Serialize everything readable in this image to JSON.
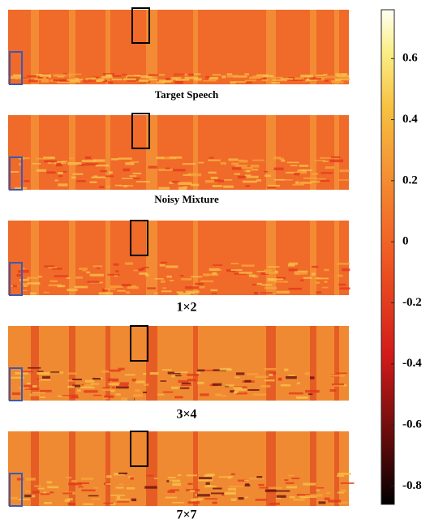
{
  "panels": [
    {
      "caption": "Target Speech"
    },
    {
      "caption": "Noisy Mixture"
    },
    {
      "caption": "1×2"
    },
    {
      "caption": "3×4"
    },
    {
      "caption": "7×7"
    }
  ],
  "colorbar": {
    "lim": [
      -0.86,
      0.76
    ],
    "ticks": [
      0.6,
      0.4,
      0.2,
      0,
      -0.2,
      -0.4,
      -0.6,
      -0.8
    ]
  }
}
